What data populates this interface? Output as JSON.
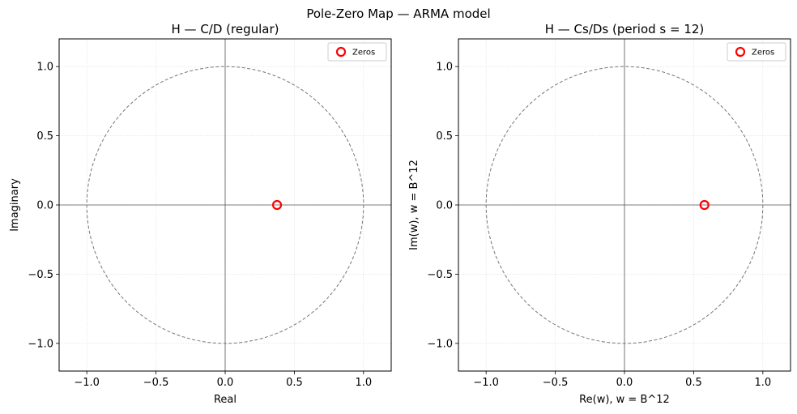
{
  "figure": {
    "suptitle": "Pole-Zero Map  —  ARMA model"
  },
  "chart_data": [
    {
      "type": "scatter",
      "title": "H — C/D (regular)",
      "xlabel": "Real",
      "ylabel": "Imaginary",
      "xlim": [
        -1.2,
        1.2
      ],
      "ylim": [
        -1.2,
        1.2
      ],
      "xticks": [
        -1.0,
        -0.5,
        0.0,
        0.5,
        1.0
      ],
      "yticks": [
        -1.0,
        -0.5,
        0.0,
        0.5,
        1.0
      ],
      "xtick_labels": [
        "−1.0",
        "−0.5",
        "0.0",
        "0.5",
        "1.0"
      ],
      "ytick_labels": [
        "−1.0",
        "−0.5",
        "0.0",
        "0.5",
        "1.0"
      ],
      "grid": true,
      "unit_circle": true,
      "legend_position": "top-right",
      "series": [
        {
          "name": "Zeros",
          "marker": "hollow-circle",
          "color": "#ff0000",
          "points": [
            {
              "x": 0.375,
              "y": 0.0
            }
          ]
        }
      ]
    },
    {
      "type": "scatter",
      "title": "H — Cs/Ds  (period s = 12)",
      "xlabel": "Re(w),  w = B^12",
      "ylabel": "Im(w),  w = B^12",
      "xlim": [
        -1.2,
        1.2
      ],
      "ylim": [
        -1.2,
        1.2
      ],
      "xticks": [
        -1.0,
        -0.5,
        0.0,
        0.5,
        1.0
      ],
      "yticks": [
        -1.0,
        -0.5,
        0.0,
        0.5,
        1.0
      ],
      "xtick_labels": [
        "−1.0",
        "−0.5",
        "0.0",
        "0.5",
        "1.0"
      ],
      "ytick_labels": [
        "−1.0",
        "−0.5",
        "0.0",
        "0.5",
        "1.0"
      ],
      "grid": true,
      "unit_circle": true,
      "legend_position": "top-right",
      "series": [
        {
          "name": "Zeros",
          "marker": "hollow-circle",
          "color": "#ff0000",
          "points": [
            {
              "x": 0.578,
              "y": 0.0
            }
          ]
        }
      ]
    }
  ]
}
